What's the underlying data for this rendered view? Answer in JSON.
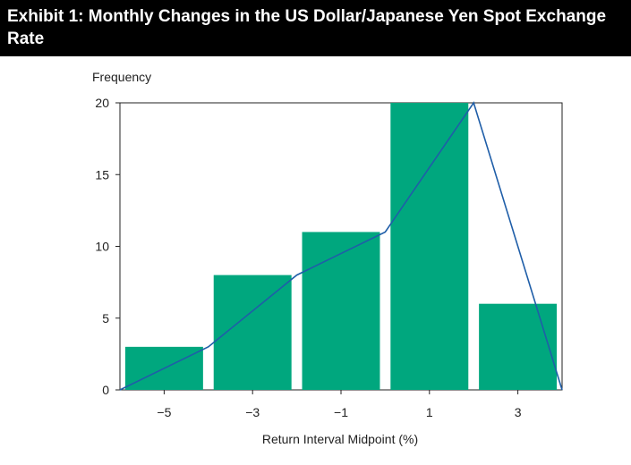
{
  "header": {
    "title": "Exhibit 1: Monthly Changes in the US Dollar/Japanese Yen Spot Exchange Rate"
  },
  "colors": {
    "header_bg": "#000000",
    "header_text": "#ffffff",
    "bar": "#00a77e",
    "line": "#1f5ea8",
    "axis": "#222222",
    "text": "#222222"
  },
  "chart_data": {
    "type": "bar",
    "title": "",
    "xlabel": "Return Interval Midpoint (%)",
    "ylabel": "Frequency",
    "categories": [
      "−5",
      "−3",
      "−1",
      "1",
      "3"
    ],
    "values": [
      3,
      8,
      11,
      20,
      6
    ],
    "ylim": [
      0,
      20
    ],
    "yticks": [
      0,
      5,
      10,
      15,
      20
    ],
    "grid": false,
    "legend": "none",
    "overlay_line": {
      "type": "line",
      "description_label": "frequency polygon",
      "x": [
        -6,
        -4,
        -2,
        0,
        2,
        4
      ],
      "y": [
        0,
        3,
        8,
        11,
        20,
        0
      ]
    }
  }
}
